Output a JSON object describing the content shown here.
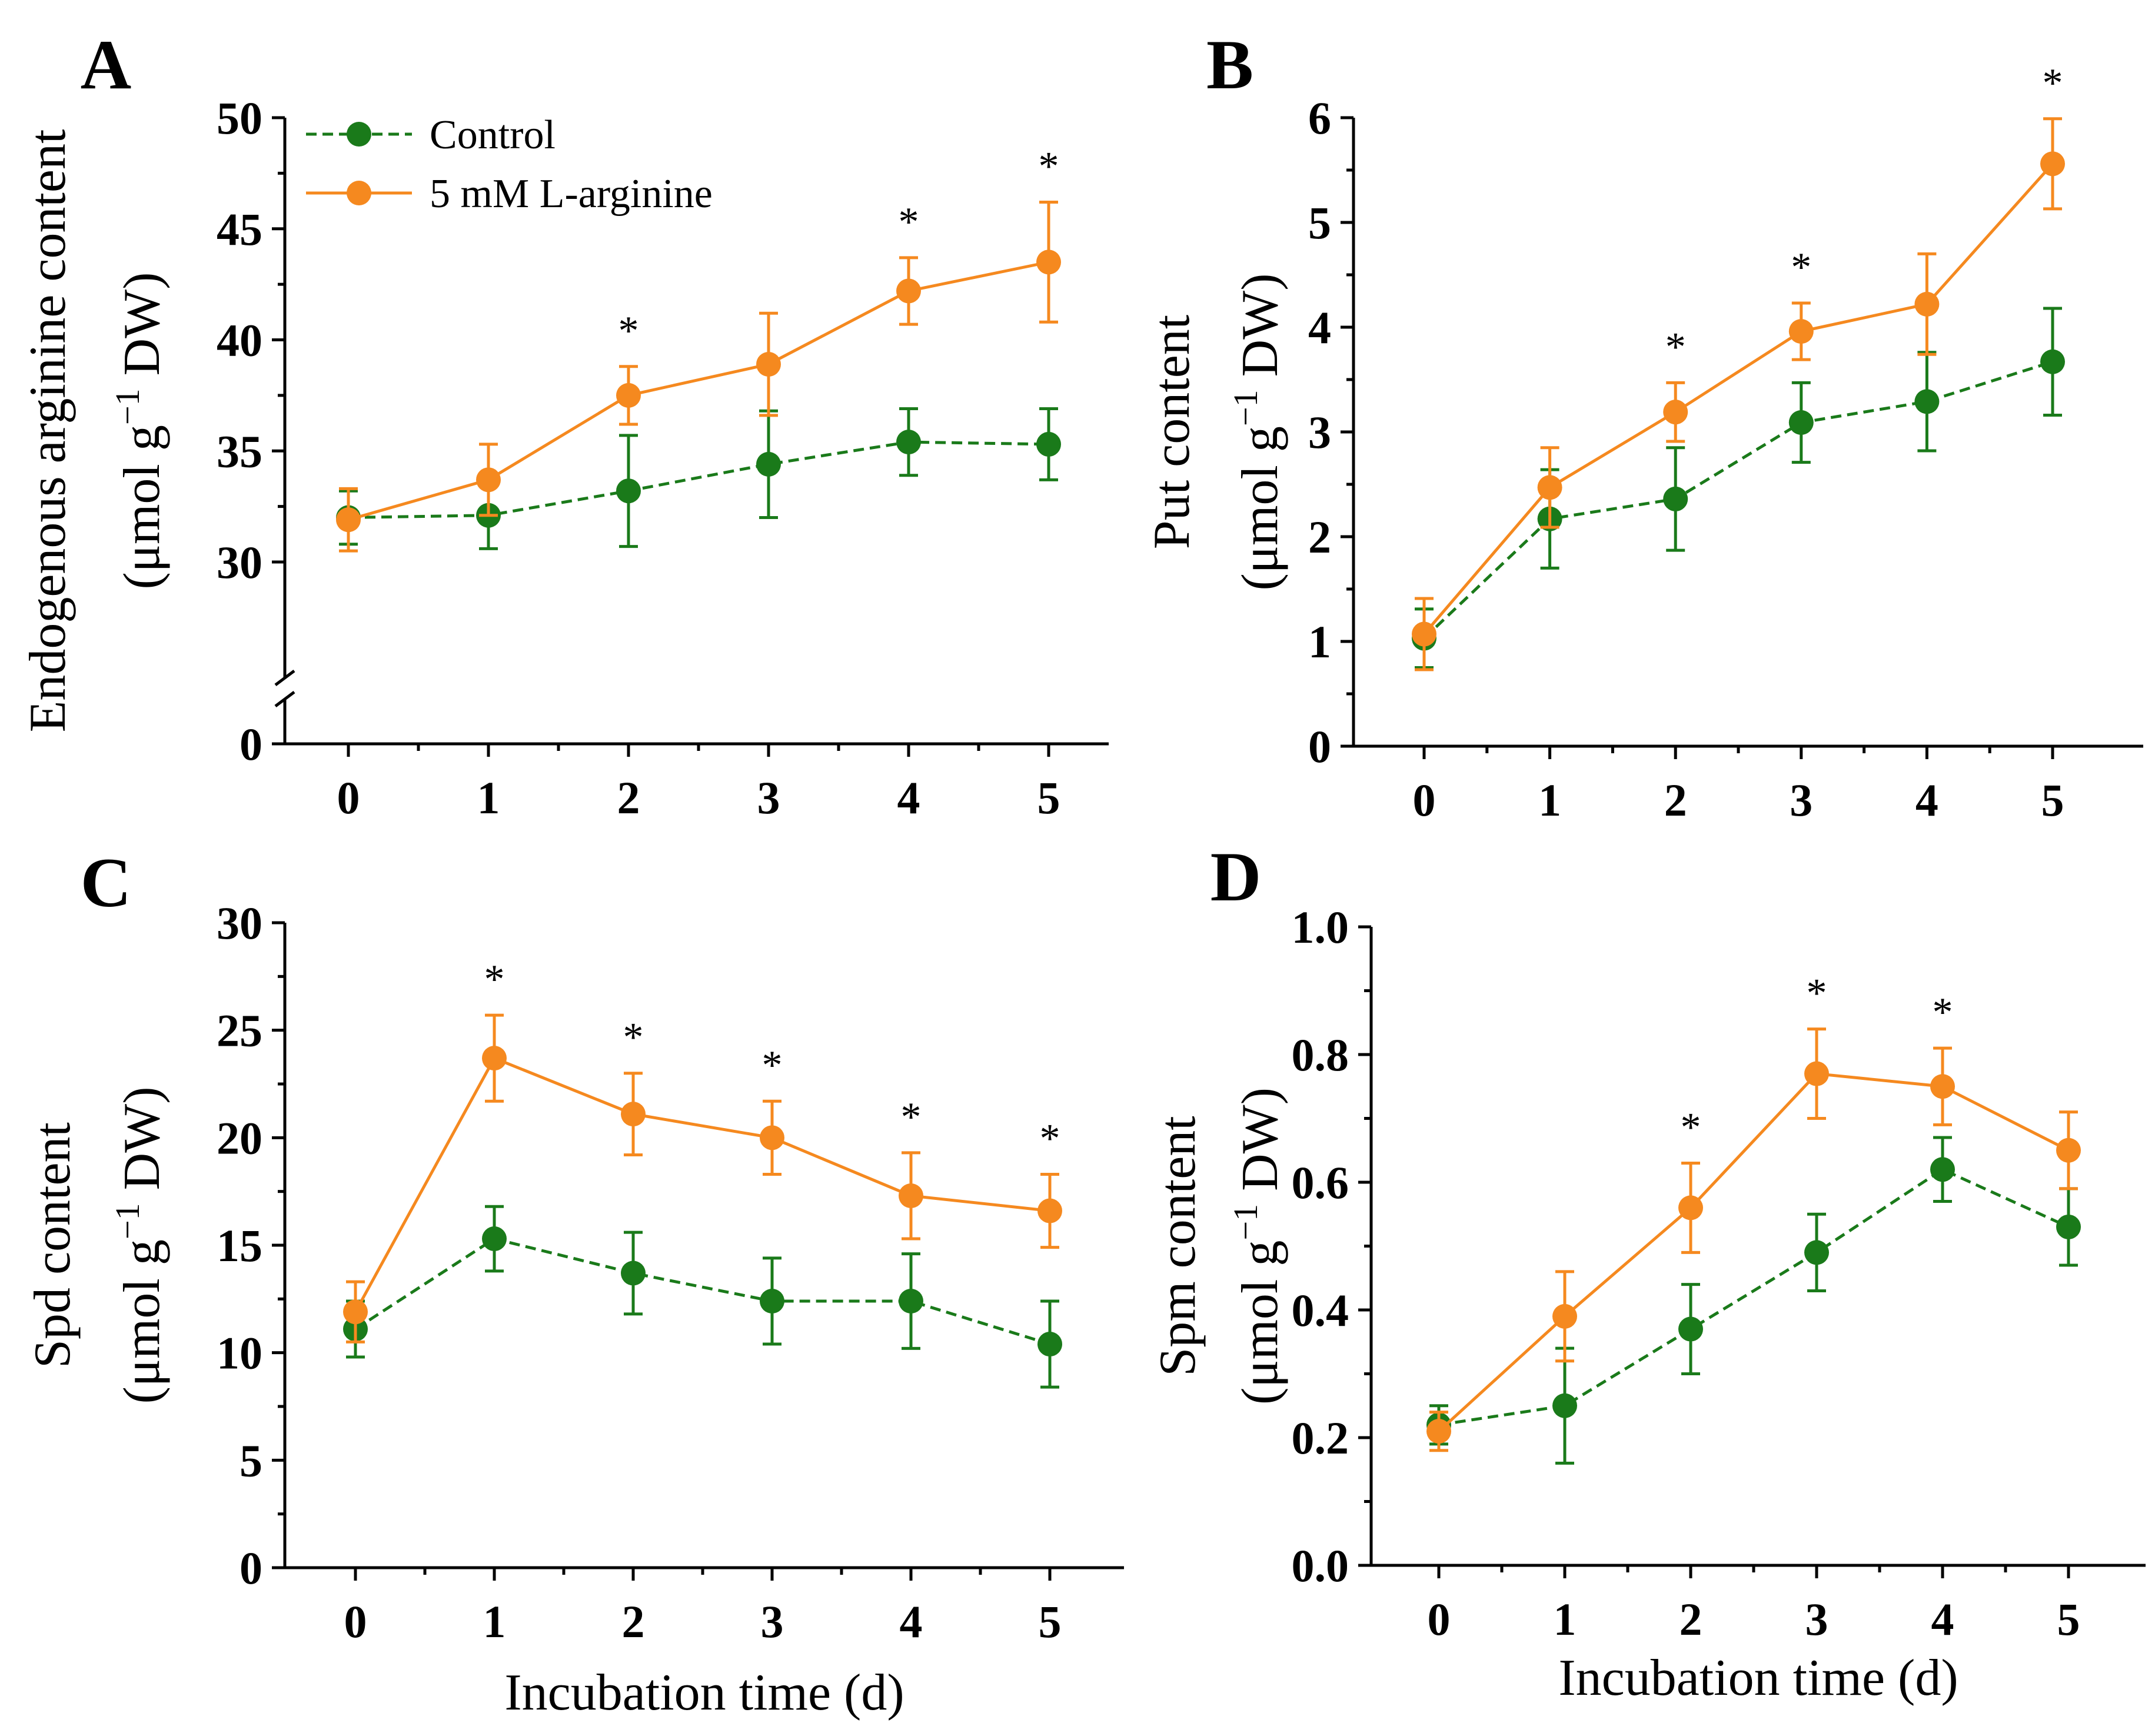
{
  "colors": {
    "control": "#1a7a1a",
    "arginine": "#f5891f"
  },
  "chart_data": [
    {
      "type": "line",
      "panel": "A",
      "xlabel": "",
      "ylabel": "Endogenous arginine content",
      "ylabel_unit": [
        "(μmol g",
        "−1",
        " DW)"
      ],
      "categories": [
        0,
        1,
        2,
        3,
        4,
        5
      ],
      "x_ticks": [
        "0",
        "1",
        "2",
        "3",
        "4",
        "5"
      ],
      "ylim": [
        0,
        50
      ],
      "y_broken": true,
      "y_break_range": [
        0,
        25
      ],
      "y_ticks": [
        0,
        30,
        35,
        40,
        45,
        50
      ],
      "y_tick_labels": [
        "0",
        "30",
        "35",
        "40",
        "45",
        "50"
      ],
      "legend": [
        {
          "name": "Control",
          "series": 0
        },
        {
          "name": "5 mM L-arginine",
          "series": 1
        }
      ],
      "series": [
        {
          "name": "Control",
          "color_key": "control",
          "dashed": true,
          "values": [
            32.0,
            32.1,
            33.2,
            34.4,
            35.4,
            35.3
          ],
          "errors": [
            1.2,
            1.5,
            2.5,
            2.4,
            1.5,
            1.6
          ]
        },
        {
          "name": "5 mM L-arginine",
          "color_key": "arginine",
          "dashed": false,
          "values": [
            31.9,
            33.7,
            37.5,
            38.9,
            42.2,
            43.5
          ],
          "errors": [
            1.4,
            1.6,
            1.3,
            2.3,
            1.5,
            2.7
          ]
        }
      ],
      "significance": [
        false,
        false,
        true,
        false,
        true,
        true
      ],
      "star_label": "*"
    },
    {
      "type": "line",
      "panel": "B",
      "xlabel": "",
      "ylabel": "Put content",
      "ylabel_unit": [
        "(μmol g",
        "−1",
        " DW)"
      ],
      "categories": [
        0,
        1,
        2,
        3,
        4,
        5
      ],
      "x_ticks": [
        "0",
        "1",
        "2",
        "3",
        "4",
        "5"
      ],
      "ylim": [
        0,
        6
      ],
      "y_ticks": [
        0,
        1,
        2,
        3,
        4,
        5,
        6
      ],
      "y_tick_labels": [
        "0",
        "1",
        "2",
        "3",
        "4",
        "5",
        "6"
      ],
      "series": [
        {
          "name": "Control",
          "color_key": "control",
          "dashed": true,
          "values": [
            1.03,
            2.17,
            2.36,
            3.09,
            3.29,
            3.67
          ],
          "errors": [
            0.28,
            0.47,
            0.49,
            0.38,
            0.47,
            0.51
          ]
        },
        {
          "name": "5 mM L-arginine",
          "color_key": "arginine",
          "dashed": false,
          "values": [
            1.07,
            2.47,
            3.19,
            3.96,
            4.22,
            5.56
          ],
          "errors": [
            0.34,
            0.38,
            0.28,
            0.27,
            0.48,
            0.43
          ]
        }
      ],
      "significance": [
        false,
        false,
        true,
        true,
        false,
        true
      ],
      "star_label": "*"
    },
    {
      "type": "line",
      "panel": "C",
      "xlabel": "Incubation time (d)",
      "ylabel": "Spd content",
      "ylabel_unit": [
        "(μmol g",
        "−1",
        " DW)"
      ],
      "categories": [
        0,
        1,
        2,
        3,
        4,
        5
      ],
      "x_ticks": [
        "0",
        "1",
        "2",
        "3",
        "4",
        "5"
      ],
      "ylim": [
        0,
        30
      ],
      "y_ticks": [
        0,
        5,
        10,
        15,
        20,
        25,
        30
      ],
      "y_tick_labels": [
        "0",
        "5",
        "10",
        "15",
        "20",
        "25",
        "30"
      ],
      "series": [
        {
          "name": "Control",
          "color_key": "control",
          "dashed": true,
          "values": [
            11.1,
            15.3,
            13.7,
            12.4,
            12.4,
            10.4
          ],
          "errors": [
            1.3,
            1.5,
            1.9,
            2.0,
            2.2,
            2.0
          ]
        },
        {
          "name": "5 mM L-arginine",
          "color_key": "arginine",
          "dashed": false,
          "values": [
            11.9,
            23.7,
            21.1,
            20.0,
            17.3,
            16.6
          ],
          "errors": [
            1.4,
            2.0,
            1.9,
            1.7,
            2.0,
            1.7
          ]
        }
      ],
      "significance": [
        false,
        true,
        true,
        true,
        true,
        true
      ],
      "star_label": "*"
    },
    {
      "type": "line",
      "panel": "D",
      "xlabel": "Incubation time (d)",
      "ylabel": "Spm content",
      "ylabel_unit": [
        "(μmol g",
        "−1",
        " DW)"
      ],
      "categories": [
        0,
        1,
        2,
        3,
        4,
        5
      ],
      "x_ticks": [
        "0",
        "1",
        "2",
        "3",
        "4",
        "5"
      ],
      "ylim": [
        0,
        1.0
      ],
      "y_ticks": [
        0.0,
        0.2,
        0.4,
        0.6,
        0.8,
        1.0
      ],
      "y_tick_labels": [
        "0.0",
        "0.2",
        "0.4",
        "0.6",
        "0.8",
        "1.0"
      ],
      "series": [
        {
          "name": "Control",
          "color_key": "control",
          "dashed": true,
          "values": [
            0.22,
            0.25,
            0.37,
            0.49,
            0.62,
            0.53
          ],
          "errors": [
            0.03,
            0.09,
            0.07,
            0.06,
            0.05,
            0.06
          ]
        },
        {
          "name": "5 mM L-arginine",
          "color_key": "arginine",
          "dashed": false,
          "values": [
            0.21,
            0.39,
            0.56,
            0.77,
            0.75,
            0.65
          ],
          "errors": [
            0.03,
            0.07,
            0.07,
            0.07,
            0.06,
            0.06
          ]
        }
      ],
      "significance": [
        false,
        false,
        true,
        true,
        true,
        false
      ],
      "star_label": "*"
    }
  ]
}
